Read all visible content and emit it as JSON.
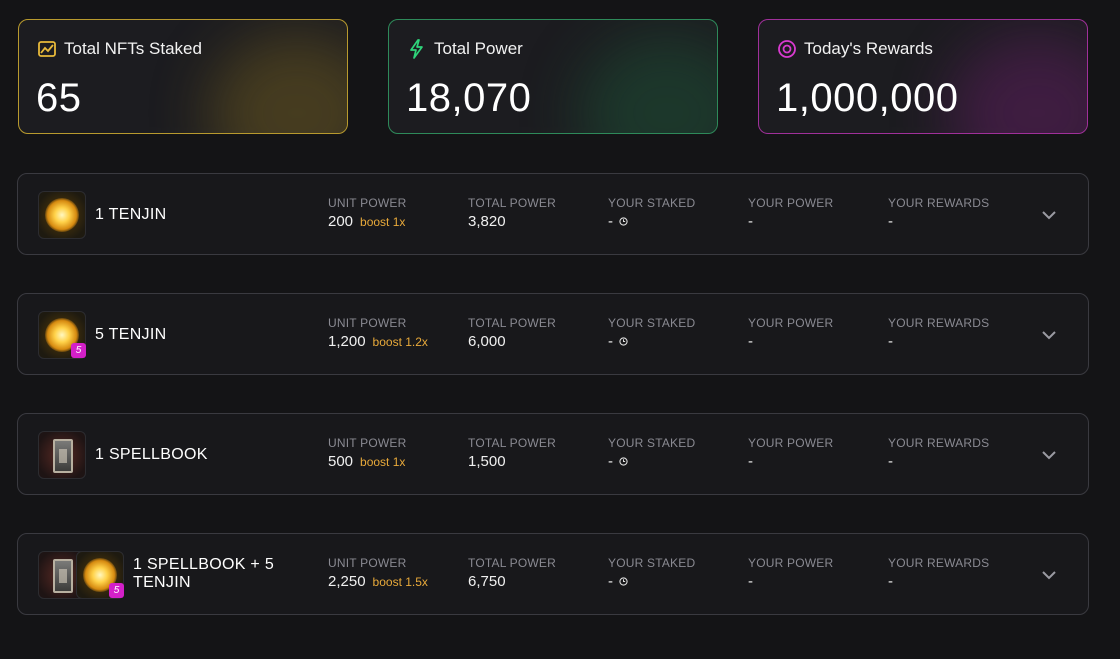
{
  "stats": [
    {
      "label": "Total NFTs Staked",
      "value": "65",
      "icon": "chart-icon",
      "color": "#e8b93a"
    },
    {
      "label": "Total Power",
      "value": "18,070",
      "icon": "lightning-icon",
      "color": "#2ed47a"
    },
    {
      "label": "Today's Rewards",
      "value": "1,000,000",
      "icon": "target-icon",
      "color": "#d93ad0"
    }
  ],
  "columns": {
    "unit_power": "UNIT POWER",
    "total_power": "TOTAL POWER",
    "your_staked": "YOUR STAKED",
    "your_power": "YOUR POWER",
    "your_rewards": "YOUR REWARDS"
  },
  "pools": [
    {
      "name": "1 TENJIN",
      "unit_power": "200",
      "boost": "boost 1x",
      "total_power": "3,820",
      "your_staked": "-",
      "your_power": "-",
      "your_rewards": "-"
    },
    {
      "name": "5 TENJIN",
      "badge": "5",
      "unit_power": "1,200",
      "boost": "boost 1.2x",
      "total_power": "6,000",
      "your_staked": "-",
      "your_power": "-",
      "your_rewards": "-"
    },
    {
      "name": "1 SPELLBOOK",
      "unit_power": "500",
      "boost": "boost 1x",
      "total_power": "1,500",
      "your_staked": "-",
      "your_power": "-",
      "your_rewards": "-"
    },
    {
      "name_line1": "1 SPELLBOOK + 5",
      "name_line2": "TENJIN",
      "badge": "5",
      "unit_power": "2,250",
      "boost": "boost 1.5x",
      "total_power": "6,750",
      "your_staked": "-",
      "your_power": "-",
      "your_rewards": "-"
    }
  ]
}
